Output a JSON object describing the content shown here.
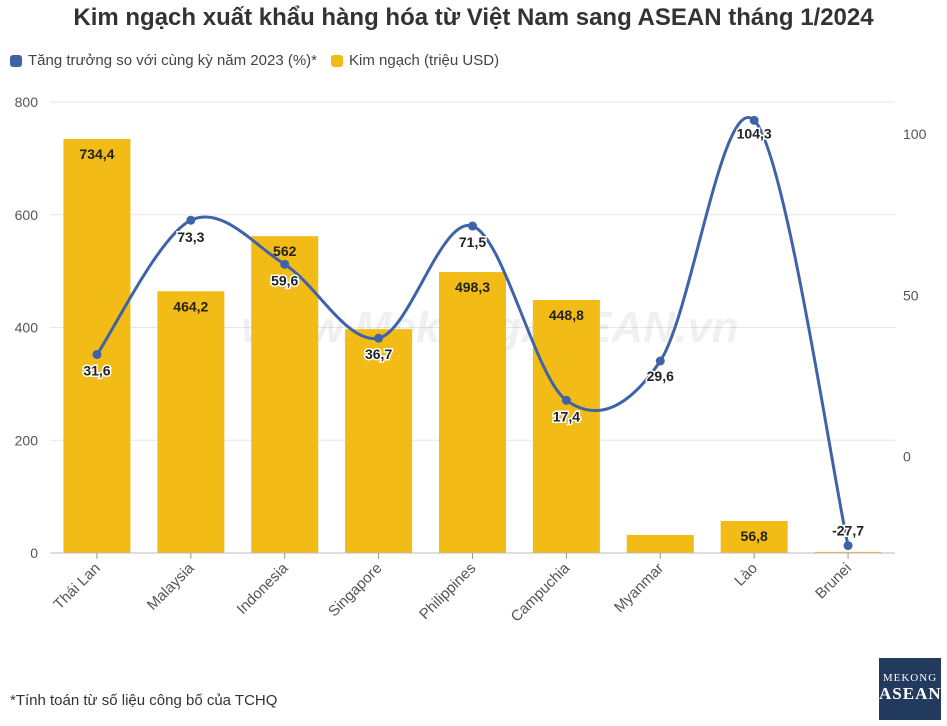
{
  "header": {
    "title": "Kim ngạch xuất khẩu hàng hóa từ Việt Nam sang ASEAN tháng 1/2024"
  },
  "legend": {
    "growth_label": "Tăng trưởng so với cùng kỳ năm 2023 (%)*",
    "value_label": "Kim ngạch (triệu USD)"
  },
  "colors": {
    "bar": "#f2bb15",
    "line": "#3e63a8",
    "grid": "#e6e6e6"
  },
  "watermark": "www.MekongASEAN.vn",
  "footnote": "*Tính toán từ số liệu công bố của TCHQ",
  "logo": {
    "line1": "MEKONG",
    "line2": "ASEAN"
  },
  "chart_data": {
    "type": "bar",
    "categories": [
      "Thái Lan",
      "Malaysia",
      "Indonesia",
      "Singapore",
      "Philippines",
      "Campuchia",
      "Myanmar",
      "Lào",
      "Brunei"
    ],
    "series": [
      {
        "name": "Kim ngạch (triệu USD)",
        "type": "bar",
        "axis": "left",
        "values": [
          734.4,
          464.2,
          562,
          397,
          498.3,
          448.8,
          32,
          56.8,
          2
        ],
        "labels": [
          "734,4",
          "464,2",
          "562",
          "",
          "498,3",
          "448,8",
          "",
          "56,8",
          ""
        ]
      },
      {
        "name": "Tăng trưởng so với cùng kỳ năm 2023 (%)*",
        "type": "line",
        "axis": "right",
        "values": [
          31.6,
          73.3,
          59.6,
          36.7,
          71.5,
          17.4,
          29.6,
          104.3,
          -27.7
        ],
        "labels": [
          "31,6",
          "73,3",
          "59,6",
          "36,7",
          "71,5",
          "17,4",
          "29,6",
          "104,3",
          "-27,7"
        ]
      }
    ],
    "y_left": {
      "ylim": [
        0,
        800
      ],
      "ticks": [
        "0",
        "200",
        "400",
        "600",
        "800"
      ]
    },
    "y_right": {
      "ylim": [
        -30,
        110
      ],
      "ticks": [
        "0",
        "50",
        "100"
      ]
    },
    "grid": true,
    "legend_position": "top-left"
  }
}
